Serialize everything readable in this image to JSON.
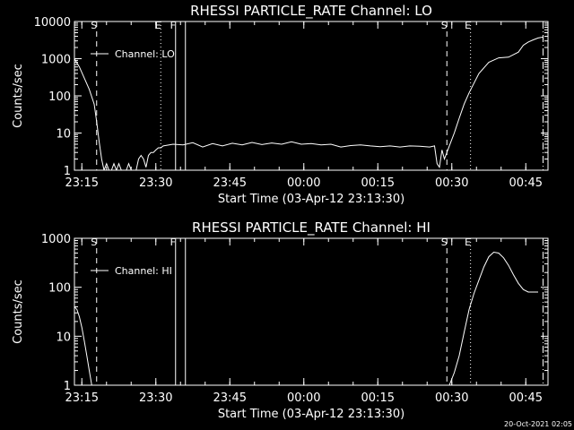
{
  "footer": {
    "timestamp": "20-Oct-2021 02:05"
  },
  "chart_data": [
    {
      "type": "line",
      "title": "RHESSI PARTICLE_RATE Channel: LO",
      "xlabel": "Start Time (03-Apr-12 23:13:30)",
      "ylabel": "Counts/sec",
      "y_scale": "log",
      "ylim": [
        1,
        10000
      ],
      "xlim_minutes": [
        0,
        96
      ],
      "y_ticks": [
        "1",
        "10",
        "100",
        "1000",
        "10000"
      ],
      "x_ticks": [
        "23:15",
        "23:30",
        "23:45",
        "00:00",
        "00:15",
        "00:30",
        "00:45"
      ],
      "legend": "Channel: LO",
      "event_markers": [
        {
          "label": "S",
          "style": "dashed",
          "minute": 4.5
        },
        {
          "label": "E",
          "style": "dotted",
          "minute": 17.5
        },
        {
          "label": "F",
          "style": "solid",
          "minute": 20.5
        },
        {
          "label": "",
          "style": "solid",
          "minute": 22.5
        },
        {
          "label": "S",
          "style": "dashed",
          "minute": 75.5
        },
        {
          "label": "E",
          "style": "dotted",
          "minute": 80.3
        },
        {
          "label": "",
          "style": "dashdot",
          "minute": 95.0
        }
      ],
      "series": [
        {
          "name": "Channel: LO",
          "x": [
            0,
            1,
            2,
            3,
            4,
            4.5,
            5,
            5.5,
            6,
            6.5,
            7,
            7.5,
            8,
            8.5,
            9,
            9.5,
            10,
            10.5,
            11,
            11.5,
            12,
            12.5,
            13,
            13.5,
            14,
            14.5,
            15,
            15.5,
            16,
            16.5,
            17,
            17.5,
            18,
            20,
            22,
            24,
            26,
            28,
            30,
            32,
            34,
            36,
            38,
            40,
            42,
            44,
            46,
            48,
            50,
            52,
            54,
            56,
            58,
            60,
            62,
            64,
            66,
            68,
            70,
            72,
            73,
            73.5,
            74,
            74.5,
            75,
            75.5,
            76,
            77,
            78,
            79,
            80,
            81,
            82,
            84,
            86,
            88,
            90,
            91,
            92,
            93,
            94,
            95
          ],
          "values": [
            1000,
            600,
            300,
            150,
            60,
            20,
            6,
            2,
            1,
            1.5,
            1,
            1,
            1.5,
            1,
            1.5,
            1,
            1,
            1,
            1.5,
            1,
            1,
            1,
            2,
            2.5,
            2,
            1.2,
            2.5,
            3,
            3,
            3.5,
            4,
            4,
            4.5,
            5,
            4.8,
            5.5,
            4.2,
            5.2,
            4.5,
            5.3,
            4.8,
            5.6,
            4.9,
            5.4,
            5,
            5.8,
            5,
            5.2,
            4.8,
            5,
            4.2,
            4.6,
            4.8,
            4.5,
            4.3,
            4.5,
            4.2,
            4.5,
            4.4,
            4.2,
            4.5,
            1.5,
            1.2,
            3.5,
            2,
            3,
            4.5,
            10,
            25,
            60,
            120,
            220,
            400,
            800,
            1050,
            1100,
            1500,
            2300,
            2800,
            3200,
            3600,
            3800
          ]
        }
      ]
    },
    {
      "type": "line",
      "title": "RHESSI PARTICLE_RATE Channel: HI",
      "xlabel": "Start Time (03-Apr-12 23:13:30)",
      "ylabel": "Counts/sec",
      "y_scale": "log",
      "ylim": [
        1,
        1000
      ],
      "xlim_minutes": [
        0,
        96
      ],
      "y_ticks": [
        "1",
        "10",
        "100",
        "1000"
      ],
      "x_ticks": [
        "23:15",
        "23:30",
        "23:45",
        "00:00",
        "00:15",
        "00:30",
        "00:45"
      ],
      "legend": "Channel: HI",
      "event_markers": [
        {
          "label": "S",
          "style": "dashed",
          "minute": 4.5
        },
        {
          "label": "F",
          "style": "solid",
          "minute": 20.5
        },
        {
          "label": "",
          "style": "solid",
          "minute": 22.5
        },
        {
          "label": "S",
          "style": "dashed",
          "minute": 75.5
        },
        {
          "label": "E",
          "style": "dotted",
          "minute": 80.3
        },
        {
          "label": "",
          "style": "dashdot",
          "minute": 95.0
        }
      ],
      "series": [
        {
          "name": "Channel: HI",
          "x": [
            0,
            0.5,
            1,
            1.5,
            2,
            2.5,
            3,
            3.5,
            76,
            77,
            78,
            79,
            80,
            81,
            82,
            83,
            84,
            85,
            86,
            87,
            88,
            89,
            90,
            91,
            92,
            93,
            94
          ],
          "values": [
            40,
            35,
            25,
            15,
            8,
            4,
            2,
            1,
            1,
            1.8,
            4,
            12,
            35,
            75,
            140,
            260,
            420,
            520,
            500,
            400,
            280,
            180,
            120,
            90,
            80,
            80,
            80
          ]
        }
      ]
    }
  ]
}
